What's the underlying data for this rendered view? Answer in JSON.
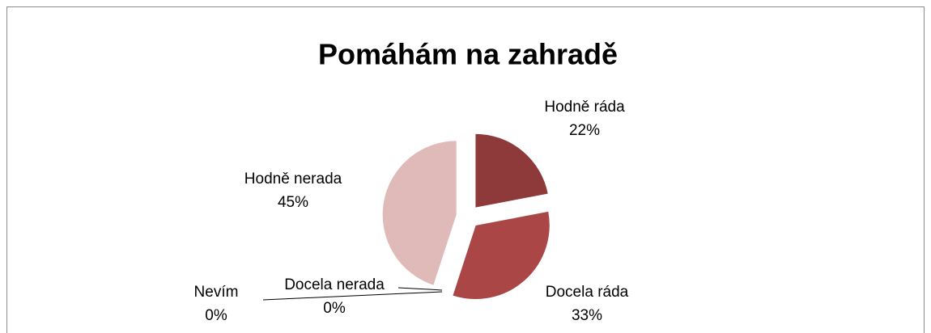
{
  "chart_data": {
    "type": "pie",
    "title": "Pomáhám na zahradě",
    "categories": [
      "Hodně ráda",
      "Docela ráda",
      "Docela nerada",
      "Nevím",
      "Hodně nerada"
    ],
    "values": [
      22,
      33,
      0,
      0,
      45
    ],
    "value_labels": [
      "22%",
      "33%",
      "0%",
      "0%",
      "45%"
    ],
    "colors": [
      "#8e3a3a",
      "#aa4646",
      "#c07070",
      "#d09898",
      "#e0b9b9"
    ]
  }
}
